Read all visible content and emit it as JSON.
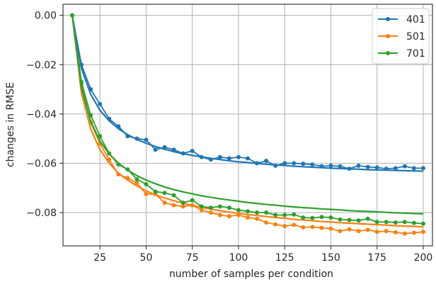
{
  "chart_data": {
    "type": "line",
    "xlabel": "number of samples per condition",
    "ylabel": "changes in RMSE",
    "xlim": [
      5,
      205
    ],
    "ylim": [
      -0.0935,
      0.0045
    ],
    "xticks": [
      25,
      50,
      75,
      100,
      125,
      150,
      175,
      200
    ],
    "xtick_labels": [
      "25",
      "50",
      "75",
      "100",
      "125",
      "150",
      "175",
      "200"
    ],
    "yticks": [
      0.0,
      -0.02,
      -0.04,
      -0.06,
      -0.08
    ],
    "ytick_labels": [
      "0.00",
      "−0.02",
      "−0.04",
      "−0.06",
      "−0.08"
    ],
    "grid": true,
    "legend_position": "top-right",
    "x": [
      10,
      15,
      20,
      25,
      30,
      35,
      40,
      45,
      50,
      55,
      60,
      65,
      70,
      75,
      80,
      85,
      90,
      95,
      100,
      105,
      110,
      115,
      120,
      125,
      130,
      135,
      140,
      145,
      150,
      155,
      160,
      165,
      170,
      175,
      180,
      185,
      190,
      195,
      200
    ],
    "series": [
      {
        "name": "401",
        "color": "#1f77b4",
        "values": [
          0.0,
          -0.02,
          -0.03,
          -0.036,
          -0.042,
          -0.045,
          -0.049,
          -0.05,
          -0.0505,
          -0.0545,
          -0.0535,
          -0.0545,
          -0.056,
          -0.055,
          -0.0575,
          -0.0585,
          -0.0575,
          -0.058,
          -0.0575,
          -0.058,
          -0.06,
          -0.059,
          -0.061,
          -0.06,
          -0.06,
          -0.0602,
          -0.0605,
          -0.0612,
          -0.061,
          -0.0612,
          -0.0622,
          -0.061,
          -0.0615,
          -0.0617,
          -0.0622,
          -0.062,
          -0.0612,
          -0.062,
          -0.062
        ],
        "fit": [
          0.0,
          -0.0215,
          -0.032,
          -0.0385,
          -0.0428,
          -0.046,
          -0.0484,
          -0.0503,
          -0.0519,
          -0.0532,
          -0.0543,
          -0.0553,
          -0.0561,
          -0.0568,
          -0.0574,
          -0.058,
          -0.0585,
          -0.059,
          -0.0594,
          -0.0597,
          -0.0601,
          -0.0604,
          -0.0607,
          -0.0609,
          -0.0612,
          -0.0614,
          -0.0616,
          -0.0618,
          -0.062,
          -0.0621,
          -0.0623,
          -0.0624,
          -0.0626,
          -0.0627,
          -0.0628,
          -0.0629,
          -0.063,
          -0.0631,
          -0.0632
        ]
      },
      {
        "name": "501",
        "color": "#ff7f0e",
        "values": [
          0.0,
          -0.028,
          -0.0435,
          -0.052,
          -0.0585,
          -0.0645,
          -0.066,
          -0.068,
          -0.0725,
          -0.0725,
          -0.076,
          -0.077,
          -0.0775,
          -0.077,
          -0.079,
          -0.08,
          -0.081,
          -0.0815,
          -0.081,
          -0.082,
          -0.0825,
          -0.084,
          -0.0848,
          -0.0855,
          -0.085,
          -0.086,
          -0.0858,
          -0.0862,
          -0.0865,
          -0.0875,
          -0.0868,
          -0.0875,
          -0.087,
          -0.0878,
          -0.0875,
          -0.088,
          -0.0885,
          -0.0882,
          -0.0878
        ],
        "fit": [
          0.0,
          -0.0315,
          -0.046,
          -0.0545,
          -0.06,
          -0.064,
          -0.0668,
          -0.0692,
          -0.0712,
          -0.0728,
          -0.0741,
          -0.0752,
          -0.0762,
          -0.0771,
          -0.0779,
          -0.0786,
          -0.0792,
          -0.0798,
          -0.0803,
          -0.0808,
          -0.0812,
          -0.0816,
          -0.082,
          -0.0823,
          -0.0827,
          -0.083,
          -0.0833,
          -0.0836,
          -0.0838,
          -0.0841,
          -0.0843,
          -0.0845,
          -0.0847,
          -0.0849,
          -0.0851,
          -0.0853,
          -0.0855,
          -0.0856,
          -0.0858
        ]
      },
      {
        "name": "701",
        "color": "#2ca02c",
        "values": [
          0.0,
          -0.027,
          -0.0405,
          -0.049,
          -0.056,
          -0.0605,
          -0.0625,
          -0.0665,
          -0.0685,
          -0.0715,
          -0.072,
          -0.073,
          -0.076,
          -0.075,
          -0.0775,
          -0.078,
          -0.0775,
          -0.078,
          -0.079,
          -0.0795,
          -0.08,
          -0.08,
          -0.081,
          -0.081,
          -0.0808,
          -0.082,
          -0.0822,
          -0.0818,
          -0.082,
          -0.0828,
          -0.083,
          -0.0832,
          -0.0825,
          -0.0838,
          -0.0838,
          -0.084,
          -0.0838,
          -0.0842,
          -0.0845
        ],
        "fit": [
          0.0,
          -0.0295,
          -0.043,
          -0.051,
          -0.0562,
          -0.06,
          -0.0628,
          -0.065,
          -0.0668,
          -0.0683,
          -0.0696,
          -0.0707,
          -0.0716,
          -0.0724,
          -0.0732,
          -0.0738,
          -0.0744,
          -0.0749,
          -0.0754,
          -0.0759,
          -0.0763,
          -0.0767,
          -0.077,
          -0.0774,
          -0.0777,
          -0.078,
          -0.0782,
          -0.0785,
          -0.0787,
          -0.0789,
          -0.0792,
          -0.0794,
          -0.0795,
          -0.0797,
          -0.0799,
          -0.0801,
          -0.0802,
          -0.0804,
          -0.0805
        ]
      }
    ]
  }
}
